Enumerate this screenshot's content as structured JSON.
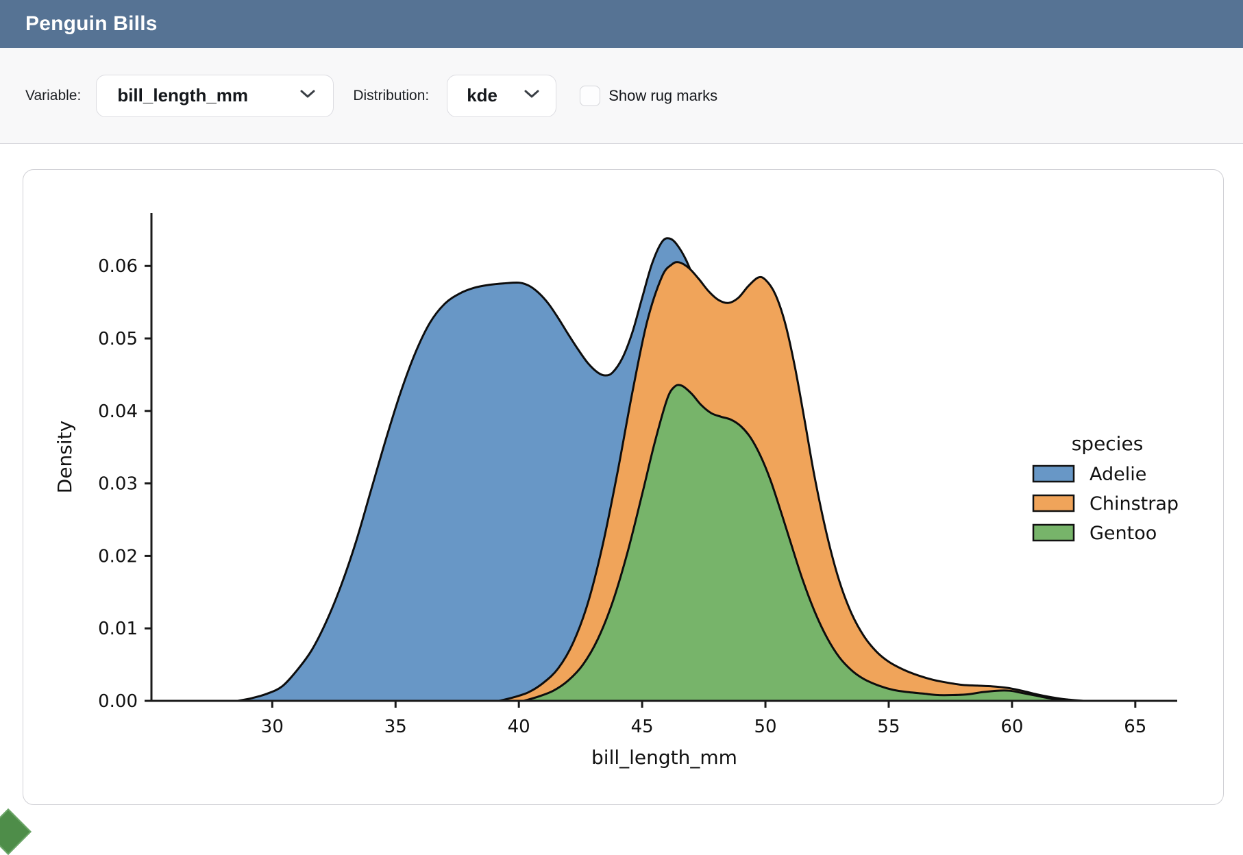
{
  "header": {
    "title": "Penguin Bills",
    "bg": "#567394"
  },
  "toolbar": {
    "variable_label": "Variable:",
    "variable_value": "bill_length_mm",
    "distribution_label": "Distribution:",
    "distribution_value": "kde",
    "rug_label": "Show rug marks",
    "rug_checked": false
  },
  "chart_data": {
    "type": "area",
    "title": "",
    "xlabel": "bill_length_mm",
    "ylabel": "Density",
    "xlim": [
      25.1,
      66.7
    ],
    "ylim": [
      0,
      0.0673
    ],
    "xticks": [
      30,
      35,
      40,
      45,
      50,
      55,
      60,
      65
    ],
    "yticks": [
      0,
      0.01,
      0.02,
      0.03,
      0.04,
      0.05,
      0.06
    ],
    "grid": false,
    "legend": {
      "title": "species",
      "position": "right-inside"
    },
    "outline_color": "#0d0d0d",
    "series": [
      {
        "name": "Adelie",
        "color": "#6897c6",
        "points": [
          [
            28.6,
            0
          ],
          [
            29.2,
            0.0004
          ],
          [
            29.8,
            0.001
          ],
          [
            30.4,
            0.002
          ],
          [
            31,
            0.0042
          ],
          [
            31.6,
            0.007
          ],
          [
            32.2,
            0.011
          ],
          [
            32.8,
            0.016
          ],
          [
            33.4,
            0.022
          ],
          [
            34,
            0.029
          ],
          [
            34.6,
            0.036
          ],
          [
            35.2,
            0.0425
          ],
          [
            35.8,
            0.048
          ],
          [
            36.4,
            0.0522
          ],
          [
            37,
            0.0548
          ],
          [
            37.6,
            0.0562
          ],
          [
            38.2,
            0.057
          ],
          [
            38.8,
            0.0574
          ],
          [
            39.4,
            0.0576
          ],
          [
            40,
            0.0577
          ],
          [
            40.4,
            0.0573
          ],
          [
            40.8,
            0.0563
          ],
          [
            41.2,
            0.0548
          ],
          [
            41.6,
            0.0528
          ],
          [
            42,
            0.0506
          ],
          [
            42.4,
            0.0485
          ],
          [
            42.8,
            0.0466
          ],
          [
            43.2,
            0.0453
          ],
          [
            43.5,
            0.0449
          ],
          [
            43.8,
            0.0453
          ],
          [
            44.2,
            0.0473
          ],
          [
            44.6,
            0.0508
          ],
          [
            45,
            0.0556
          ],
          [
            45.4,
            0.0603
          ],
          [
            45.8,
            0.0633
          ],
          [
            46.1,
            0.0638
          ],
          [
            46.4,
            0.063
          ],
          [
            46.8,
            0.0607
          ],
          [
            47.2,
            0.0572
          ],
          [
            47.6,
            0.0526
          ],
          [
            48,
            0.047
          ],
          [
            48.4,
            0.0408
          ],
          [
            48.8,
            0.0345
          ],
          [
            49.2,
            0.0285
          ],
          [
            49.6,
            0.0229
          ],
          [
            50,
            0.018
          ],
          [
            50.5,
            0.0131
          ],
          [
            51,
            0.0093
          ],
          [
            51.5,
            0.0064
          ],
          [
            52,
            0.0043
          ],
          [
            52.5,
            0.0028
          ],
          [
            53,
            0.0018
          ],
          [
            53.6,
            0.001
          ],
          [
            54.2,
            0.0005
          ],
          [
            55,
            0.0002
          ],
          [
            56,
            0
          ]
        ]
      },
      {
        "name": "Chinstrap",
        "color": "#f0a45a",
        "points": [
          [
            39.2,
            0
          ],
          [
            39.8,
            0.0005
          ],
          [
            40.4,
            0.0012
          ],
          [
            41,
            0.0025
          ],
          [
            41.6,
            0.0045
          ],
          [
            42.2,
            0.008
          ],
          [
            42.8,
            0.0135
          ],
          [
            43.4,
            0.0215
          ],
          [
            44,
            0.0315
          ],
          [
            44.6,
            0.0425
          ],
          [
            45.2,
            0.0523
          ],
          [
            45.8,
            0.0585
          ],
          [
            46.2,
            0.0602
          ],
          [
            46.5,
            0.0605
          ],
          [
            46.9,
            0.0597
          ],
          [
            47.3,
            0.0582
          ],
          [
            47.7,
            0.0565
          ],
          [
            48.1,
            0.0553
          ],
          [
            48.5,
            0.0549
          ],
          [
            48.9,
            0.0556
          ],
          [
            49.3,
            0.0572
          ],
          [
            49.7,
            0.0584
          ],
          [
            50,
            0.0581
          ],
          [
            50.4,
            0.0561
          ],
          [
            50.8,
            0.0521
          ],
          [
            51.2,
            0.046
          ],
          [
            51.6,
            0.0385
          ],
          [
            52,
            0.0308
          ],
          [
            52.5,
            0.0228
          ],
          [
            53,
            0.0165
          ],
          [
            53.5,
            0.012
          ],
          [
            54,
            0.0089
          ],
          [
            54.5,
            0.0068
          ],
          [
            55,
            0.0054
          ],
          [
            55.6,
            0.0043
          ],
          [
            56.2,
            0.0035
          ],
          [
            56.8,
            0.0029
          ],
          [
            57.4,
            0.0025
          ],
          [
            58,
            0.0022
          ],
          [
            58.6,
            0.0021
          ],
          [
            59.2,
            0.002
          ],
          [
            59.8,
            0.0018
          ],
          [
            60.4,
            0.0014
          ],
          [
            61,
            0.0009
          ],
          [
            61.6,
            0.0005
          ],
          [
            62.2,
            0.0002
          ],
          [
            62.9,
            0
          ]
        ]
      },
      {
        "name": "Gentoo",
        "color": "#77b46a",
        "points": [
          [
            40.2,
            0
          ],
          [
            40.8,
            0.0006
          ],
          [
            41.4,
            0.0014
          ],
          [
            42,
            0.0028
          ],
          [
            42.6,
            0.005
          ],
          [
            43.2,
            0.0085
          ],
          [
            43.8,
            0.0136
          ],
          [
            44.4,
            0.0204
          ],
          [
            45,
            0.0285
          ],
          [
            45.5,
            0.0355
          ],
          [
            46,
            0.0415
          ],
          [
            46.3,
            0.0433
          ],
          [
            46.6,
            0.0435
          ],
          [
            47,
            0.0424
          ],
          [
            47.4,
            0.0408
          ],
          [
            47.8,
            0.0397
          ],
          [
            48.2,
            0.0392
          ],
          [
            48.6,
            0.0388
          ],
          [
            49,
            0.0379
          ],
          [
            49.4,
            0.0363
          ],
          [
            49.8,
            0.0338
          ],
          [
            50.2,
            0.0305
          ],
          [
            50.6,
            0.0264
          ],
          [
            51,
            0.0221
          ],
          [
            51.5,
            0.0168
          ],
          [
            52,
            0.0123
          ],
          [
            52.5,
            0.0087
          ],
          [
            53,
            0.006
          ],
          [
            53.5,
            0.0042
          ],
          [
            54,
            0.003
          ],
          [
            54.6,
            0.0021
          ],
          [
            55.2,
            0.0015
          ],
          [
            55.8,
            0.0012
          ],
          [
            56.4,
            0.001
          ],
          [
            57,
            0.0008
          ],
          [
            57.6,
            0.0008
          ],
          [
            58.2,
            0.0009
          ],
          [
            58.8,
            0.0012
          ],
          [
            59.4,
            0.0014
          ],
          [
            59.9,
            0.0014
          ],
          [
            60.4,
            0.0011
          ],
          [
            61,
            0.0007
          ],
          [
            61.6,
            0.0003
          ],
          [
            62.2,
            0.0001
          ],
          [
            62.8,
            0
          ]
        ]
      }
    ]
  }
}
